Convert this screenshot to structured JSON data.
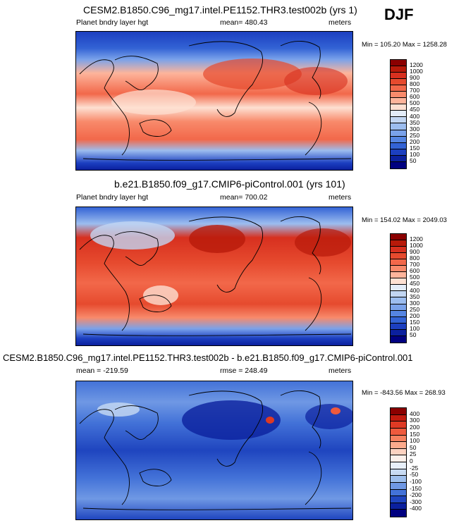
{
  "season": "DJF",
  "panels": [
    {
      "title": "CESM2.B1850.C96_mg17.intel.PE1152.THR3.test002b (yrs 1)",
      "left_label": "Planet bndry layer hgt",
      "center_label": "mean= 480.43",
      "right_label": "meters",
      "minmax": "Min = 105.20 Max = 1258.28",
      "levels": [
        "1200",
        "1000",
        "900",
        "800",
        "700",
        "600",
        "500",
        "450",
        "400",
        "350",
        "300",
        "250",
        "200",
        "150",
        "100",
        "50"
      ],
      "colors": [
        "#8b0000",
        "#b81a0a",
        "#d7301f",
        "#e64a2e",
        "#f2684a",
        "#f88a6b",
        "#fdb49b",
        "#fde0d2",
        "#e3ecf8",
        "#c2d6f2",
        "#9cbdef",
        "#7aa2ea",
        "#5585e2",
        "#3363d5",
        "#1c3fc0",
        "#0b209e",
        "#000080"
      ],
      "style": "high"
    },
    {
      "title": "b.e21.B1850.f09_g17.CMIP6-piControl.001 (yrs 101)",
      "left_label": "Planet bndry layer hgt",
      "center_label": "mean= 700.02",
      "right_label": "meters",
      "minmax": "Min = 154.02 Max = 2049.03",
      "levels": [
        "1200",
        "1000",
        "900",
        "800",
        "700",
        "600",
        "500",
        "450",
        "400",
        "350",
        "300",
        "250",
        "200",
        "150",
        "100",
        "50"
      ],
      "colors": [
        "#8b0000",
        "#b81a0a",
        "#d7301f",
        "#e64a2e",
        "#f2684a",
        "#f88a6b",
        "#fdb49b",
        "#fde0d2",
        "#e3ecf8",
        "#c2d6f2",
        "#9cbdef",
        "#7aa2ea",
        "#5585e2",
        "#3363d5",
        "#1c3fc0",
        "#0b209e",
        "#000080"
      ],
      "style": "higher"
    },
    {
      "title": "CESM2.B1850.C96_mg17.intel.PE1152.THR3.test002b - b.e21.B1850.f09_g17.CMIP6-piControl.001",
      "left_label": "mean = -219.59",
      "center_label": "rmse = 248.49",
      "right_label": "meters",
      "minmax": "Min = -843.56 Max = 268.93",
      "levels": [
        "400",
        "300",
        "200",
        "150",
        "100",
        "50",
        "25",
        "0",
        "-25",
        "-50",
        "-100",
        "-150",
        "-200",
        "-300",
        "-400"
      ],
      "colors": [
        "#8b0000",
        "#c21b0f",
        "#de3a24",
        "#ef5a3d",
        "#f7815f",
        "#fcaa8c",
        "#fdd2c0",
        "#fdf0ea",
        "#e8f0fa",
        "#c8dbf3",
        "#9ebfed",
        "#6f98e4",
        "#4372d8",
        "#1f45bf",
        "#0b209e",
        "#000080"
      ],
      "style": "diff"
    }
  ]
}
